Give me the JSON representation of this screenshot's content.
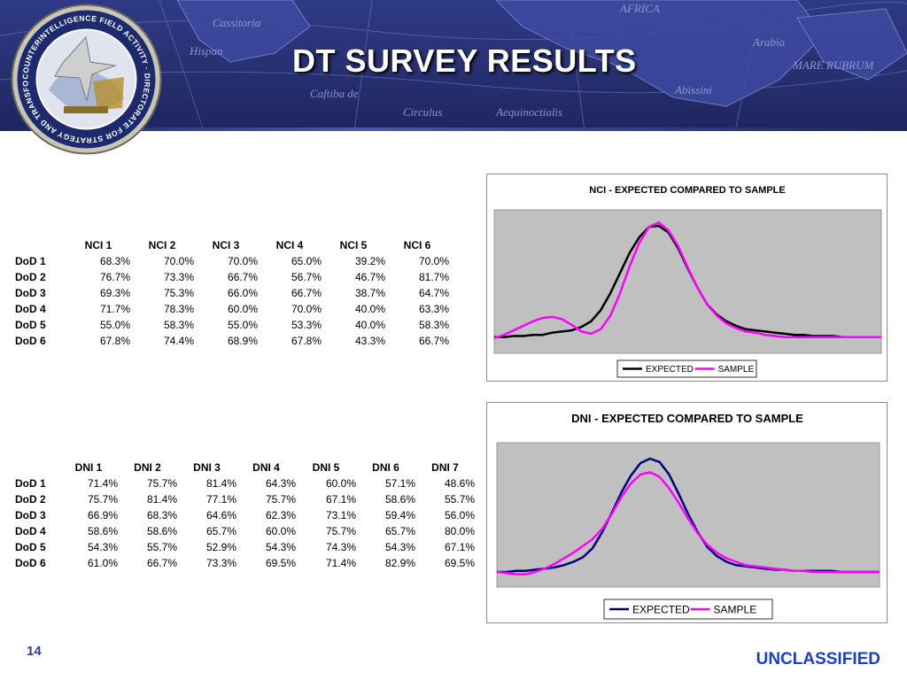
{
  "header": {
    "title": "DT SURVEY RESULTS",
    "seal_ring_text": "COUNTERINTELLIGENCE FIELD ACTIVITY · DIRECTORATE FOR STRATEGY AND TRANSFORMATION",
    "map_labels": [
      "AFRICA",
      "Arabia",
      "MARE RUBRUM",
      "Hispan",
      "Cassitoria",
      "Abissini",
      "Circulus",
      "Aequinoctialis",
      "Caftiba de"
    ]
  },
  "nci_table": {
    "columns": [
      "NCI 1",
      "NCI 2",
      "NCI 3",
      "NCI 4",
      "NCI 5",
      "NCI 6"
    ],
    "rows": [
      {
        "label": "DoD 1",
        "values": [
          "68.3%",
          "70.0%",
          "70.0%",
          "65.0%",
          "39.2%",
          "70.0%"
        ]
      },
      {
        "label": "DoD 2",
        "values": [
          "76.7%",
          "73.3%",
          "66.7%",
          "56.7%",
          "46.7%",
          "81.7%"
        ]
      },
      {
        "label": "DoD 3",
        "values": [
          "69.3%",
          "75.3%",
          "66.0%",
          "66.7%",
          "38.7%",
          "64.7%"
        ]
      },
      {
        "label": "DoD 4",
        "values": [
          "71.7%",
          "78.3%",
          "60.0%",
          "70.0%",
          "40.0%",
          "63.3%"
        ]
      },
      {
        "label": "DoD 5",
        "values": [
          "55.0%",
          "58.3%",
          "55.0%",
          "53.3%",
          "40.0%",
          "58.3%"
        ]
      },
      {
        "label": "DoD 6",
        "values": [
          "67.8%",
          "74.4%",
          "68.9%",
          "67.8%",
          "43.3%",
          "66.7%"
        ]
      }
    ]
  },
  "dni_table": {
    "columns": [
      "DNI 1",
      "DNI 2",
      "DNI 3",
      "DNI 4",
      "DNI 5",
      "DNI 6",
      "DNI 7"
    ],
    "rows": [
      {
        "label": "DoD 1",
        "values": [
          "71.4%",
          "75.7%",
          "81.4%",
          "64.3%",
          "60.0%",
          "57.1%",
          "48.6%"
        ]
      },
      {
        "label": "DoD 2",
        "values": [
          "75.7%",
          "81.4%",
          "77.1%",
          "75.7%",
          "67.1%",
          "58.6%",
          "55.7%"
        ]
      },
      {
        "label": "DoD 3",
        "values": [
          "66.9%",
          "68.3%",
          "64.6%",
          "62.3%",
          "73.1%",
          "59.4%",
          "56.0%"
        ]
      },
      {
        "label": "DoD 4",
        "values": [
          "58.6%",
          "58.6%",
          "65.7%",
          "60.0%",
          "75.7%",
          "65.7%",
          "80.0%"
        ]
      },
      {
        "label": "DoD 5",
        "values": [
          "54.3%",
          "55.7%",
          "52.9%",
          "54.3%",
          "74.3%",
          "54.3%",
          "67.1%"
        ]
      },
      {
        "label": "DoD 6",
        "values": [
          "61.0%",
          "66.7%",
          "73.3%",
          "69.5%",
          "71.4%",
          "82.9%",
          "69.5%"
        ]
      }
    ]
  },
  "chart_data": [
    {
      "type": "line",
      "title": "NCI - EXPECTED COMPARED TO SAMPLE",
      "xlabel": "",
      "ylabel": "",
      "x": [
        0,
        1,
        2,
        3,
        4,
        5,
        6,
        7,
        8,
        9,
        10,
        11,
        12,
        13,
        14,
        15,
        16,
        17,
        18,
        19,
        20,
        21,
        22,
        23,
        24,
        25,
        26,
        27,
        28,
        29,
        30,
        31,
        32,
        33,
        34,
        35,
        36,
        37,
        38,
        39,
        40
      ],
      "ylim": [
        0,
        1
      ],
      "grid": false,
      "legend": "bottom-center",
      "plot_background": "#c0c0c0",
      "series": [
        {
          "name": "EXPECTED",
          "color": "#000000",
          "values": [
            0.01,
            0.01,
            0.02,
            0.02,
            0.03,
            0.03,
            0.05,
            0.06,
            0.07,
            0.1,
            0.15,
            0.25,
            0.4,
            0.58,
            0.76,
            0.9,
            0.99,
            1.0,
            0.94,
            0.8,
            0.62,
            0.45,
            0.3,
            0.21,
            0.15,
            0.11,
            0.08,
            0.07,
            0.06,
            0.05,
            0.04,
            0.03,
            0.03,
            0.02,
            0.02,
            0.02,
            0.01,
            0.01,
            0.01,
            0.01,
            0.01
          ]
        },
        {
          "name": "SAMPLE",
          "color": "#ff00ff",
          "values": [
            0.0,
            0.03,
            0.07,
            0.11,
            0.15,
            0.18,
            0.19,
            0.17,
            0.12,
            0.06,
            0.04,
            0.08,
            0.2,
            0.4,
            0.64,
            0.85,
            0.99,
            1.03,
            0.96,
            0.82,
            0.63,
            0.45,
            0.3,
            0.2,
            0.13,
            0.09,
            0.06,
            0.05,
            0.03,
            0.02,
            0.01,
            0.01,
            0.01,
            0.01,
            0.01,
            0.01,
            0.01,
            0.01,
            0.01,
            0.01,
            0.01
          ]
        }
      ]
    },
    {
      "type": "line",
      "title": "DNI - EXPECTED COMPARED TO SAMPLE",
      "xlabel": "",
      "ylabel": "",
      "x": [
        0,
        1,
        2,
        3,
        4,
        5,
        6,
        7,
        8,
        9,
        10,
        11,
        12,
        13,
        14,
        15,
        16,
        17,
        18,
        19,
        20,
        21,
        22,
        23,
        24,
        25,
        26,
        27,
        28,
        29,
        30,
        31,
        32,
        33,
        34,
        35,
        36,
        37,
        38,
        39,
        40
      ],
      "ylim": [
        0,
        1
      ],
      "grid": false,
      "legend": "bottom-center",
      "plot_background": "#c0c0c0",
      "series": [
        {
          "name": "EXPECTED",
          "color": "#000080",
          "values": [
            0.0,
            0.0,
            0.01,
            0.01,
            0.02,
            0.03,
            0.04,
            0.06,
            0.09,
            0.13,
            0.21,
            0.35,
            0.52,
            0.7,
            0.85,
            0.96,
            1.0,
            0.97,
            0.86,
            0.69,
            0.51,
            0.35,
            0.22,
            0.14,
            0.09,
            0.06,
            0.05,
            0.04,
            0.03,
            0.02,
            0.02,
            0.01,
            0.01,
            0.01,
            0.01,
            0.01,
            0.0,
            0.0,
            0.0,
            0.0,
            0.0
          ]
        },
        {
          "name": "SAMPLE",
          "color": "#ff00ff",
          "values": [
            0.0,
            -0.01,
            -0.02,
            -0.02,
            0.0,
            0.03,
            0.07,
            0.12,
            0.17,
            0.23,
            0.29,
            0.38,
            0.51,
            0.66,
            0.78,
            0.86,
            0.88,
            0.84,
            0.74,
            0.61,
            0.47,
            0.34,
            0.24,
            0.17,
            0.12,
            0.09,
            0.06,
            0.05,
            0.04,
            0.03,
            0.02,
            0.01,
            0.01,
            0.0,
            0.0,
            0.0,
            0.0,
            0.0,
            0.0,
            0.0,
            0.0
          ]
        }
      ]
    }
  ],
  "footer": {
    "page_number": "14",
    "classification": "UNCLASSIFIED"
  },
  "colors": {
    "banner": "#27306f",
    "title_text": "#ffffff",
    "classification": "#1a3fd0",
    "page_number": "#2f3d96"
  }
}
